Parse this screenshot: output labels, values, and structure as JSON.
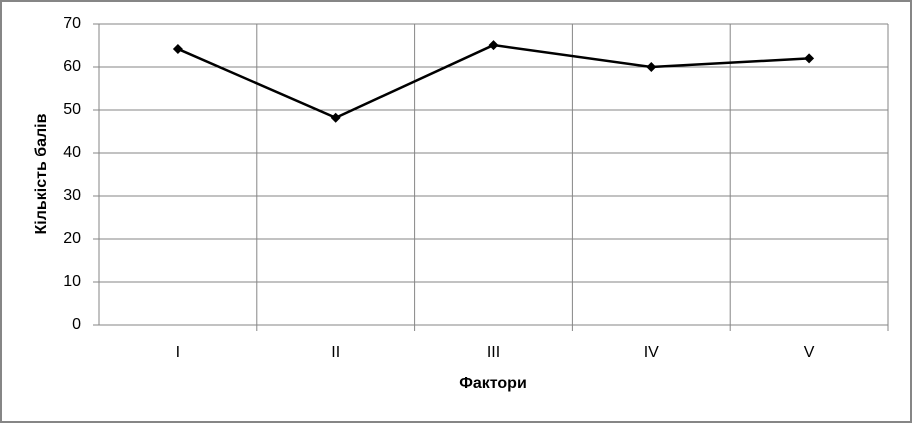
{
  "chart_data": {
    "type": "line",
    "x_label": "Фактори",
    "y_label": "Кількість балів",
    "categories": [
      "I",
      "II",
      "III",
      "IV",
      "V"
    ],
    "values": [
      64.2,
      48.2,
      65.1,
      60,
      62
    ],
    "color": "#000000",
    "ylim": [
      0,
      70
    ],
    "yticks": [
      0,
      10,
      20,
      30,
      40,
      50,
      60,
      70
    ],
    "grid": true
  }
}
